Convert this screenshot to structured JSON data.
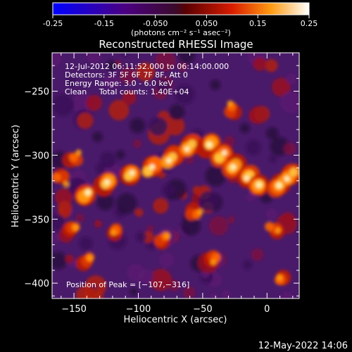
{
  "colorbar": {
    "tick_labels": [
      "-0.25",
      "-0.15",
      "-0.050",
      "0.050",
      "0.15",
      "0.25"
    ],
    "ticks": [
      -0.25,
      -0.15,
      -0.05,
      0.05,
      0.15,
      0.25
    ],
    "range": [
      -0.25,
      0.25
    ],
    "units": "(photons cm⁻² s⁻¹ asec⁻²)"
  },
  "chart_data": {
    "type": "heatmap",
    "title": "Reconstructed RHESSI Image",
    "xlabel": "Heliocentric X (arcsec)",
    "ylabel": "Heliocentric Y (arcsec)",
    "xlim": [
      -167,
      25
    ],
    "ylim": [
      -412,
      -220
    ],
    "x_ticks": [
      -150,
      -100,
      -50,
      0
    ],
    "y_ticks": [
      -250,
      -300,
      -350,
      -400
    ],
    "x_tick_labels": [
      "−150",
      "−100",
      "−50",
      "0"
    ],
    "y_tick_labels": [
      "−250",
      "−300",
      "−350",
      "−400"
    ],
    "annotations": [
      "12-Jul-2012 06:11:52.000 to 06:14:00.000",
      "Detectors: 3F 5F 6F 7F 8F, Att 0",
      "Energy Range: 3.0 - 6.0 keV",
      "Clean     Total counts: 1.40E+04"
    ],
    "peak_label": "Position of Peak = [−107,−316]",
    "peak": [
      -107,
      -316
    ],
    "colormap": "hot"
  },
  "footer": {
    "date": "12-May-2022 14:06"
  }
}
